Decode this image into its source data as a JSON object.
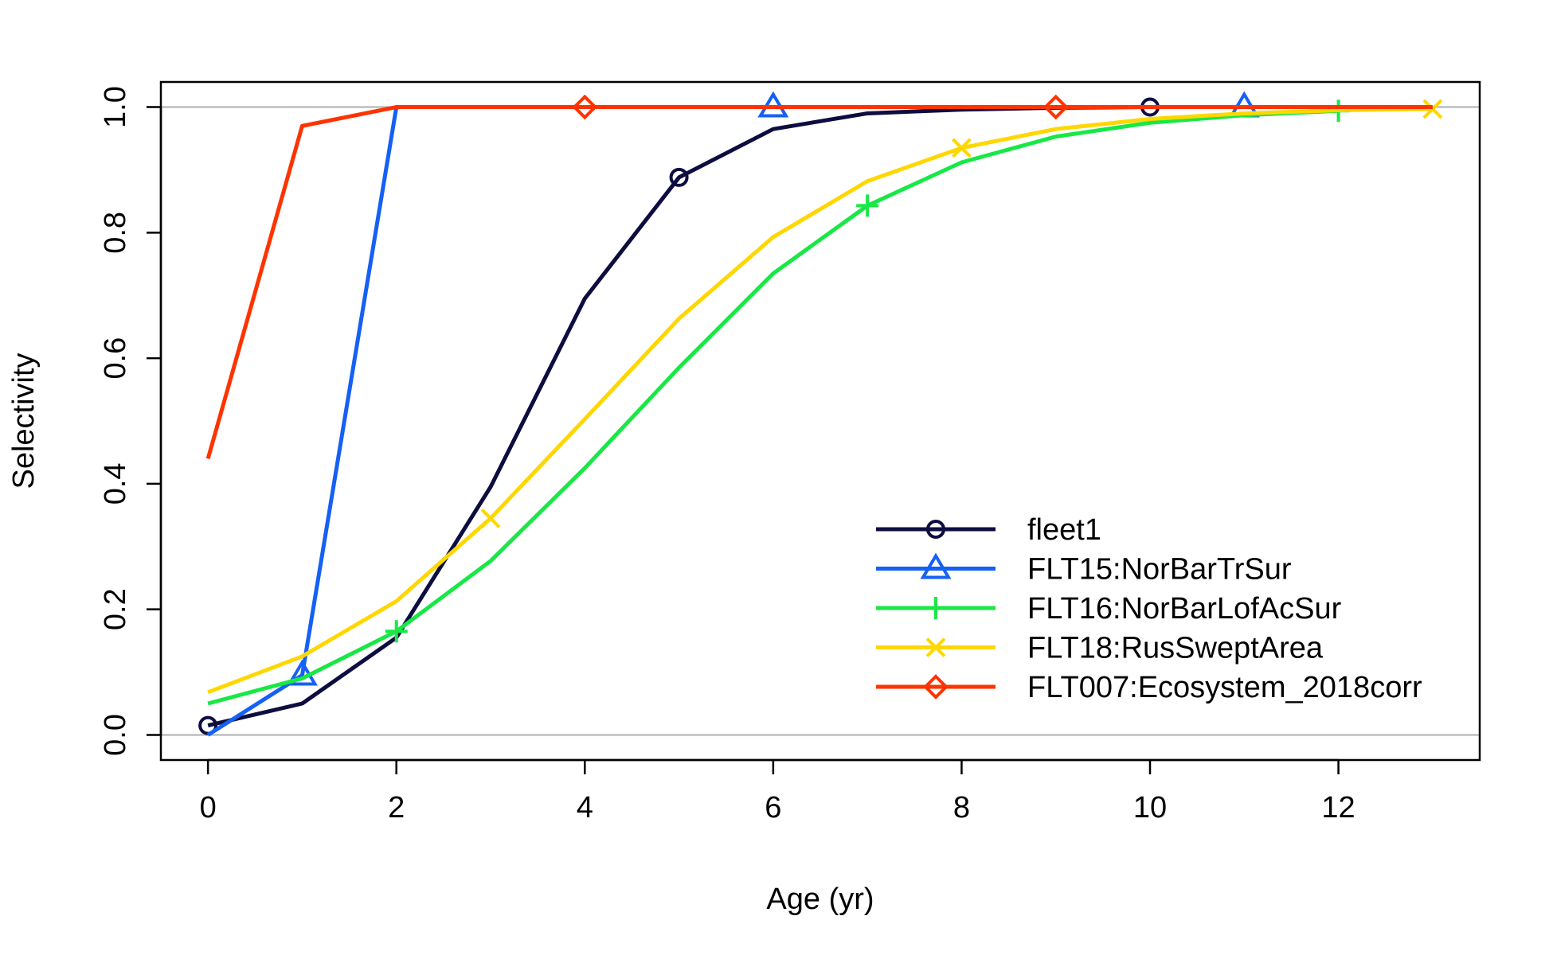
{
  "chart_data": {
    "type": "line",
    "title": "",
    "xlabel": "Age (yr)",
    "ylabel": "Selectivity",
    "xlim": [
      -0.5,
      13.5
    ],
    "ylim": [
      -0.04,
      1.04
    ],
    "x_ticks": [
      0,
      2,
      4,
      6,
      8,
      10,
      12
    ],
    "y_ticks": [
      0.0,
      0.2,
      0.4,
      0.6,
      0.8,
      1.0
    ],
    "x_tick_labels": [
      "0",
      "2",
      "4",
      "6",
      "8",
      "10",
      "12"
    ],
    "y_tick_labels": [
      "0.0",
      "0.2",
      "0.4",
      "0.6",
      "0.8",
      "1.0"
    ],
    "reference_lines": [
      0,
      1
    ],
    "grid": false,
    "legend_position": "bottom-right",
    "series": [
      {
        "name": "fleet1",
        "color": "#0d0d40",
        "marker": "circle",
        "marker_every": 5,
        "marker_offset": 0,
        "x": [
          0,
          1,
          2,
          3,
          4,
          5,
          6,
          7,
          8,
          9,
          10
        ],
        "values": [
          0.015,
          0.05,
          0.155,
          0.395,
          0.695,
          0.888,
          0.965,
          0.99,
          0.996,
          0.999,
          1.0
        ]
      },
      {
        "name": "FLT15:NorBarTrSur",
        "color": "#1560f5",
        "marker": "triangle",
        "marker_every": 5,
        "marker_offset": 1,
        "x": [
          0,
          1,
          2,
          3,
          4,
          5,
          6,
          7,
          8,
          9,
          10,
          11
        ],
        "values": [
          0.0,
          0.095,
          1.0,
          1.0,
          1.0,
          1.0,
          1.0,
          1.0,
          1.0,
          1.0,
          1.0,
          1.0
        ]
      },
      {
        "name": "FLT16:NorBarLofAcSur",
        "color": "#18e845",
        "marker": "plus",
        "marker_every": 5,
        "marker_offset": 2,
        "x": [
          0,
          1,
          2,
          3,
          4,
          5,
          6,
          7,
          8,
          9,
          10,
          11,
          12
        ],
        "values": [
          0.05,
          0.09,
          0.165,
          0.277,
          0.425,
          0.585,
          0.735,
          0.843,
          0.912,
          0.953,
          0.975,
          0.987,
          0.994
        ]
      },
      {
        "name": "FLT18:RusSweptArea",
        "color": "#ffd700",
        "marker": "x",
        "marker_every": 5,
        "marker_offset": 3,
        "x": [
          0,
          1,
          2,
          3,
          4,
          5,
          6,
          7,
          8,
          9,
          10,
          11,
          12,
          13
        ],
        "values": [
          0.068,
          0.125,
          0.213,
          0.345,
          0.503,
          0.663,
          0.793,
          0.882,
          0.935,
          0.965,
          0.981,
          0.99,
          0.995,
          0.997
        ]
      },
      {
        "name": "FLT007:Ecosystem_2018corr",
        "color": "#ff3300",
        "marker": "diamond",
        "marker_every": 5,
        "marker_offset": 4,
        "x": [
          0,
          1,
          2,
          3,
          4,
          5,
          6,
          7,
          8,
          9,
          10,
          11,
          12,
          13
        ],
        "values": [
          0.44,
          0.97,
          1.0,
          1.0,
          1.0,
          1.0,
          1.0,
          1.0,
          1.0,
          1.0,
          1.0,
          1.0,
          1.0,
          1.0
        ]
      }
    ]
  }
}
